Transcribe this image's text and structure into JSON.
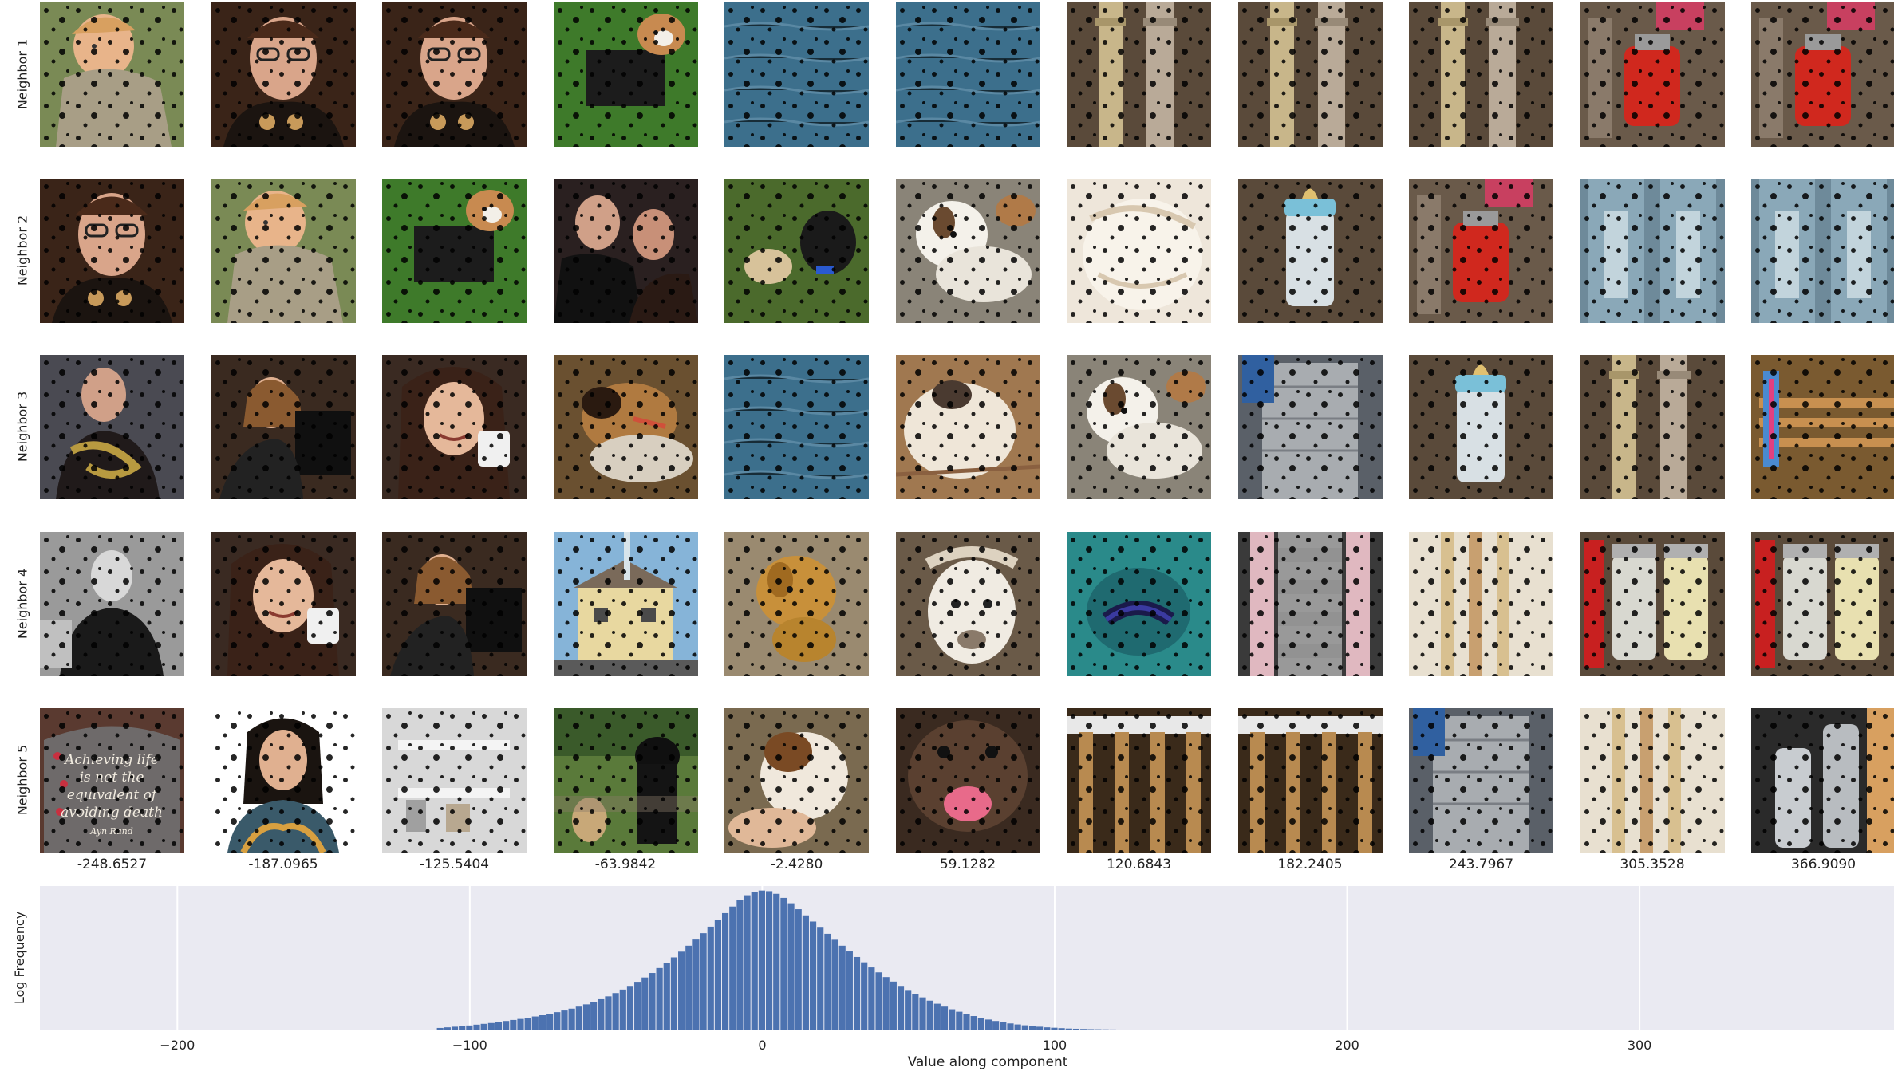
{
  "row_labels": [
    "Neighbor 1",
    "Neighbor 2",
    "Neighbor 3",
    "Neighbor 4",
    "Neighbor 5"
  ],
  "column_values": [
    "-248.6527",
    "-187.0965",
    "-125.5404",
    "-63.9842",
    "-2.4280",
    "59.1282",
    "120.6843",
    "182.2405",
    "243.7967",
    "305.3528",
    "366.9090"
  ],
  "tiles": [
    [
      "toddler",
      "bespectacled-man",
      "bespectacled-man",
      "puppy-on-grass",
      "water-surface",
      "water-surface",
      "wooden-columns",
      "wooden-columns",
      "wooden-columns",
      "red-canister",
      "red-canister"
    ],
    [
      "bespectacled-man",
      "toddler",
      "puppy-on-grass",
      "man-and-woman",
      "dogs-on-grass",
      "saint-bernard",
      "fluffy-dog",
      "baby-bottle",
      "red-canister",
      "jeans",
      "jeans"
    ],
    [
      "man-with-snake",
      "woman-at-laptop",
      "smiling-woman",
      "german-shepherd",
      "water-surface",
      "dog-on-floor",
      "saint-bernard",
      "metal-canister",
      "baby-bottle",
      "wooden-columns",
      "wooden-sticks"
    ],
    [
      "grayscale-man",
      "smiling-woman",
      "woman-at-laptop",
      "yellow-house",
      "golden-puppy",
      "llama",
      "sea-slug",
      "pink-pillars",
      "wooden-handles",
      "spice-jars",
      "spice-jars"
    ],
    [
      "quote-sign",
      "woman-portrait",
      "white-shelf",
      "black-dog",
      "puppy-in-hand",
      "dog-open-mouth",
      "hammers",
      "hammers",
      "metal-canister",
      "wooden-handles",
      "silver-bottles"
    ]
  ],
  "sign_text": [
    "Achieving life",
    "is not the",
    "equivalent of",
    "avoiding death",
    "Ayn Rand"
  ],
  "colors": {
    "plot_bg": "#eaeaf2",
    "bar": "#4c72b0",
    "grid": "#ffffff",
    "mask": "#000000"
  },
  "chart_data": {
    "type": "bar",
    "xlabel": "Value along component",
    "ylabel": "Log Frequency",
    "xlim": [
      -247,
      387
    ],
    "xticks": [
      -200,
      -100,
      0,
      100,
      200,
      300
    ],
    "yscale": "log",
    "grid": true,
    "bin_width": 2.5,
    "bin_centers": [
      -110,
      -107.5,
      -105,
      -102.5,
      -100,
      -97.5,
      -95,
      -92.5,
      -90,
      -87.5,
      -85,
      -82.5,
      -80,
      -77.5,
      -75,
      -72.5,
      -70,
      -67.5,
      -65,
      -62.5,
      -60,
      -57.5,
      -55,
      -52.5,
      -50,
      -47.5,
      -45,
      -42.5,
      -40,
      -37.5,
      -35,
      -32.5,
      -30,
      -27.5,
      -25,
      -22.5,
      -20,
      -17.5,
      -15,
      -12.5,
      -10,
      -7.5,
      -5,
      -2.5,
      0,
      2.5,
      5,
      7.5,
      10,
      12.5,
      15,
      17.5,
      20,
      22.5,
      25,
      27.5,
      30,
      32.5,
      35,
      37.5,
      40,
      42.5,
      45,
      47.5,
      50,
      52.5,
      55,
      57.5,
      60,
      62.5,
      65,
      67.5,
      70,
      72.5,
      75,
      77.5,
      80,
      82.5,
      85,
      87.5,
      90,
      92.5,
      95,
      97.5,
      100,
      102.5,
      105,
      107.5,
      110,
      112.5,
      115,
      117.5,
      120
    ],
    "log_frequency": [
      0.8,
      1.1,
      1.4,
      1.7,
      2.0,
      2.4,
      2.8,
      3.2,
      3.7,
      4.2,
      4.7,
      5.2,
      5.8,
      6.4,
      7.0,
      7.7,
      8.5,
      9.3,
      10.2,
      11.2,
      12.3,
      13.5,
      14.8,
      16.2,
      17.8,
      19.5,
      21.3,
      23.3,
      25.4,
      27.6,
      30.0,
      32.5,
      35.2,
      38.0,
      40.9,
      43.9,
      47.0,
      50.2,
      53.5,
      56.8,
      60.0,
      63.0,
      65.5,
      67.2,
      67.8,
      67.5,
      66.2,
      64.2,
      61.6,
      58.7,
      55.7,
      52.7,
      49.7,
      46.7,
      43.8,
      40.9,
      38.1,
      35.4,
      32.8,
      30.3,
      27.9,
      25.6,
      23.4,
      21.3,
      19.3,
      17.4,
      15.7,
      14.1,
      12.6,
      11.2,
      9.9,
      8.7,
      7.6,
      6.6,
      5.7,
      4.9,
      4.2,
      3.6,
      3.0,
      2.5,
      2.1,
      1.7,
      1.4,
      1.1,
      0.9,
      0.7,
      0.5,
      0.4,
      0.3,
      0.2,
      0.15,
      0.1,
      0.05
    ]
  }
}
